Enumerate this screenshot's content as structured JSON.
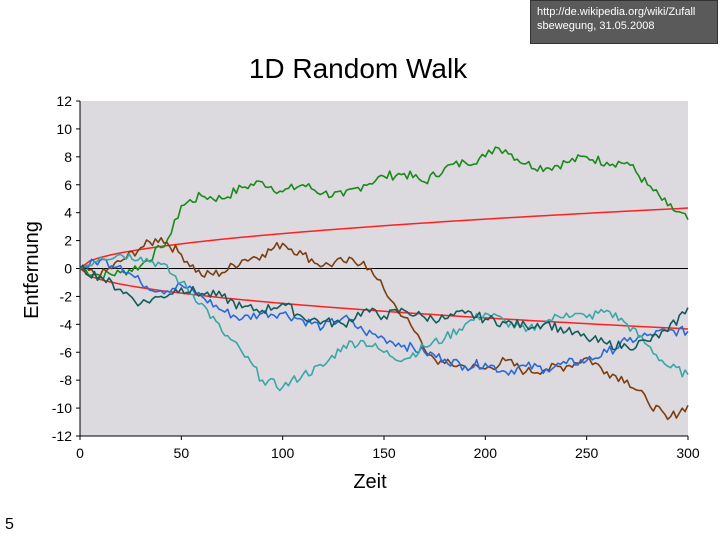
{
  "source": {
    "line1": "http://de.wikipedia.org/wiki/Zufall",
    "line2": "sbewegung, 31.05.2008"
  },
  "slide_number": "5",
  "colors": {
    "plot_bg": "#dcd9df",
    "expected": "#ff2020",
    "zero_line": "#000000"
  },
  "chart_data": {
    "type": "line",
    "title": "1D Random Walk",
    "xlabel": "Zeit",
    "ylabel": "Entfernung",
    "xlim": [
      0,
      300
    ],
    "ylim": [
      -12,
      12
    ],
    "x_ticks": [
      0,
      50,
      100,
      150,
      200,
      250,
      300
    ],
    "y_ticks": [
      12,
      10,
      8,
      6,
      4,
      2,
      0,
      -2,
      -4,
      -6,
      -8,
      -10,
      -12
    ],
    "grid": false,
    "legend": "none",
    "envelope": {
      "note": "sqrt(t)/4",
      "color": "#ff2020"
    },
    "series": [
      {
        "color": "#1a8a1a",
        "x": [
          0,
          10,
          20,
          30,
          40,
          45,
          50,
          60,
          70,
          80,
          90,
          100,
          110,
          120,
          130,
          140,
          150,
          160,
          170,
          180,
          190,
          200,
          205,
          210,
          220,
          230,
          240,
          250,
          260,
          270,
          280,
          290,
          300
        ],
        "y": [
          0,
          -0.5,
          -0.3,
          0.2,
          1.5,
          2.5,
          4.5,
          5.2,
          5.0,
          5.8,
          6.2,
          5.5,
          6.0,
          5.4,
          5.2,
          6.0,
          6.6,
          6.8,
          6.2,
          7.2,
          7.6,
          8.0,
          8.7,
          8.5,
          7.5,
          7.2,
          7.6,
          8.0,
          7.6,
          7.6,
          6.0,
          4.5,
          3.5
        ]
      },
      {
        "color": "#7a3f10",
        "x": [
          0,
          10,
          20,
          30,
          40,
          50,
          60,
          70,
          80,
          90,
          100,
          110,
          120,
          130,
          140,
          145,
          150,
          155,
          160,
          165,
          170,
          175,
          180,
          190,
          200,
          210,
          220,
          230,
          240,
          250,
          260,
          270,
          280,
          290,
          300
        ],
        "y": [
          0,
          -0.5,
          0.5,
          1.5,
          2.2,
          1.0,
          -0.5,
          -0.3,
          0.6,
          1.0,
          1.8,
          1.0,
          0.2,
          0.5,
          0.5,
          -0.5,
          -1.5,
          -2.5,
          -3.5,
          -4.5,
          -5.8,
          -6.5,
          -6.8,
          -7.0,
          -7.2,
          -6.6,
          -7.4,
          -7.2,
          -7.0,
          -6.4,
          -7.4,
          -8.0,
          -9.5,
          -10.8,
          -9.8
        ]
      },
      {
        "color": "#2a6ad8",
        "x": [
          0,
          10,
          20,
          30,
          40,
          50,
          60,
          70,
          80,
          90,
          100,
          110,
          120,
          130,
          140,
          150,
          160,
          170,
          180,
          190,
          200,
          210,
          220,
          230,
          240,
          250,
          260,
          270,
          280,
          290,
          300
        ],
        "y": [
          0,
          0.6,
          0.2,
          -1.0,
          -1.6,
          -1.2,
          -2.0,
          -3.0,
          -3.6,
          -3.2,
          -3.2,
          -3.7,
          -4.2,
          -3.5,
          -4.5,
          -5.0,
          -5.5,
          -6.0,
          -6.5,
          -7.0,
          -6.8,
          -7.4,
          -7.0,
          -7.2,
          -6.8,
          -6.6,
          -6.0,
          -5.2,
          -4.8,
          -4.5,
          -4.5
        ]
      },
      {
        "color": "#3aa6a6",
        "x": [
          0,
          10,
          20,
          30,
          40,
          50,
          60,
          70,
          80,
          90,
          100,
          110,
          120,
          130,
          140,
          150,
          160,
          170,
          180,
          190,
          200,
          210,
          220,
          230,
          240,
          250,
          260,
          270,
          280,
          290,
          300
        ],
        "y": [
          0,
          0.8,
          1.0,
          0.8,
          0.3,
          -1.0,
          -2.5,
          -4.5,
          -6.0,
          -8.0,
          -8.5,
          -7.6,
          -7.0,
          -5.5,
          -5.2,
          -6.0,
          -6.5,
          -5.6,
          -5.0,
          -4.0,
          -3.2,
          -3.8,
          -4.5,
          -3.8,
          -3.2,
          -3.5,
          -3.0,
          -4.0,
          -5.5,
          -7.0,
          -7.6
        ]
      },
      {
        "color": "#145c5c",
        "x": [
          0,
          10,
          20,
          30,
          40,
          50,
          60,
          70,
          80,
          90,
          100,
          110,
          120,
          130,
          140,
          150,
          160,
          170,
          180,
          190,
          200,
          210,
          220,
          230,
          240,
          250,
          260,
          270,
          280,
          290,
          300
        ],
        "y": [
          0,
          -0.6,
          -1.5,
          -2.5,
          -2.0,
          -1.4,
          -1.8,
          -2.0,
          -2.8,
          -3.0,
          -2.5,
          -3.5,
          -3.8,
          -4.0,
          -3.0,
          -3.4,
          -3.0,
          -3.5,
          -3.6,
          -3.2,
          -3.6,
          -3.9,
          -4.1,
          -3.9,
          -4.5,
          -5.0,
          -5.4,
          -5.6,
          -5.2,
          -4.5,
          -2.8
        ]
      }
    ]
  }
}
